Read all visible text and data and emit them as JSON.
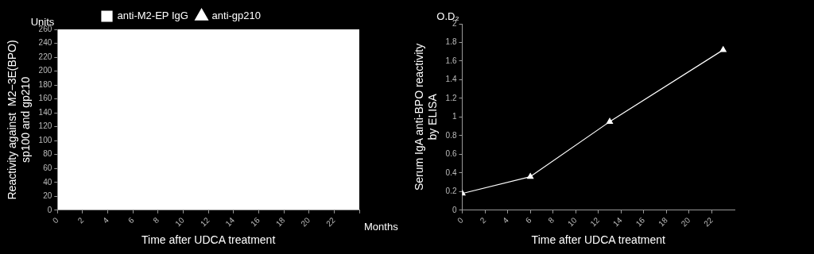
{
  "chart_data": [
    {
      "type": "line",
      "xlabel": "Time after UDCA treatment",
      "ylabel": "Reactivity against  M2−3E(BPO)\nsp100 and gp210",
      "annotations": [
        "Units",
        "Months"
      ],
      "categories": [
        "0",
        "2",
        "4",
        "6",
        "8",
        "10",
        "12",
        "14",
        "16",
        "18",
        "20",
        "22",
        null
      ],
      "ylim": [
        0,
        260
      ],
      "yticks": [
        0,
        20,
        40,
        60,
        80,
        100,
        120,
        140,
        160,
        180,
        200,
        220,
        240,
        260
      ],
      "grid": false,
      "legend": "top",
      "series": [
        {
          "name": "anti-M2-EP IgG",
          "color": "#ffffff",
          "marker": "square",
          "values": [
            null,
            null,
            null,
            null,
            null,
            null,
            null,
            null,
            null,
            null,
            null,
            null,
            null
          ]
        },
        {
          "name": "anti-gp210",
          "color": "#ffffff",
          "marker": "triangle",
          "values": [
            null,
            null,
            null,
            null,
            null,
            null,
            null,
            null,
            null,
            null,
            null,
            null,
            null
          ]
        }
      ]
    },
    {
      "type": "line",
      "xlabel": "Time after UDCA treatment",
      "ylabel": "Serum IgA anti-BPO reactivity\nby ELISA",
      "annotations": [
        "O.D₂"
      ],
      "xlim": [
        0,
        24
      ],
      "xticks": [
        0,
        2,
        4,
        6,
        8,
        10,
        12,
        14,
        16,
        18,
        20,
        22
      ],
      "ylim": [
        0,
        2
      ],
      "yticks": [
        0,
        0.2,
        0.4,
        0.6,
        0.8,
        1,
        1.2,
        1.4,
        1.6,
        1.8,
        2
      ],
      "grid": false,
      "marker": "triangle",
      "series": [
        {
          "color": "#ffffff",
          "x": [
            0,
            6,
            13,
            23
          ],
          "values": [
            0.18,
            0.36,
            0.95,
            1.72
          ]
        }
      ]
    }
  ]
}
